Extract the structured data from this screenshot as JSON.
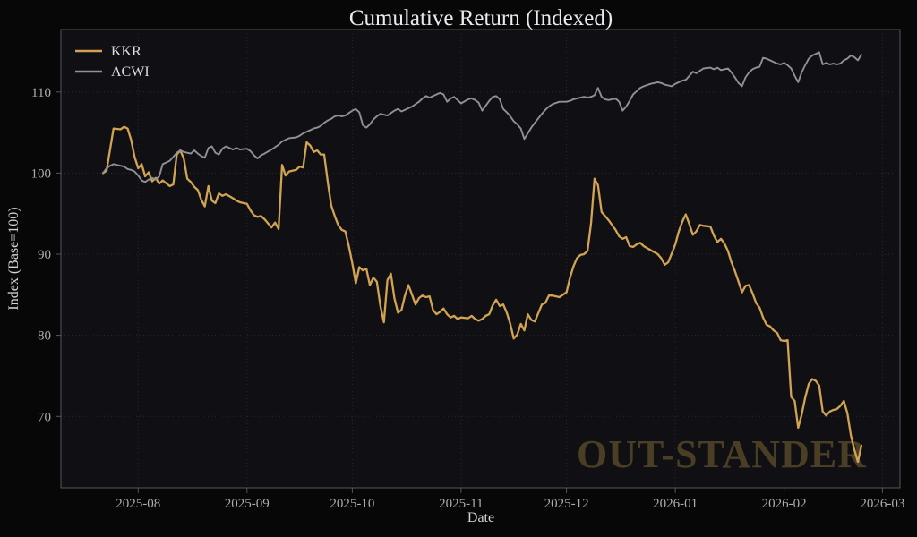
{
  "colors": {
    "background": "#070708",
    "plot_background": "#101014",
    "grid": "#28282d",
    "spine": "#53565b",
    "tick_label": "#abadaf",
    "title": "#e9eaec",
    "axis_label": "#d2d3d5",
    "legend_label": "#dcdddf",
    "watermark": "#4a3e25",
    "kkr": "#d2a352",
    "acwi": "#8e9196"
  },
  "chart_data": {
    "type": "line",
    "title": "Cumulative Return (Indexed)",
    "xlabel": "Date",
    "ylabel": "Index (Base=100)",
    "watermark": "OUT-STANDER",
    "grid": true,
    "legend_position": "upper left",
    "x_range": [
      "2025-07-10",
      "2026-03-06"
    ],
    "ylim": [
      61.2,
      117.7
    ],
    "y_ticks": [
      70,
      80,
      90,
      100,
      110
    ],
    "x_ticks": [
      {
        "date": "2025-08-01",
        "label": "2025-08"
      },
      {
        "date": "2025-09-01",
        "label": "2025-09"
      },
      {
        "date": "2025-10-01",
        "label": "2025-10"
      },
      {
        "date": "2025-11-01",
        "label": "2025-11"
      },
      {
        "date": "2025-12-01",
        "label": "2025-12"
      },
      {
        "date": "2026-01-01",
        "label": "2026-01"
      },
      {
        "date": "2026-02-01",
        "label": "2026-02"
      },
      {
        "date": "2026-03-01",
        "label": "2026-03"
      }
    ],
    "x": [
      "2025-07-22",
      "2025-07-23",
      "2025-07-24",
      "2025-07-25",
      "2025-07-27",
      "2025-07-28",
      "2025-07-29",
      "2025-07-30",
      "2025-07-31",
      "2025-08-01",
      "2025-08-02",
      "2025-08-03",
      "2025-08-04",
      "2025-08-05",
      "2025-08-06",
      "2025-08-07",
      "2025-08-08",
      "2025-08-10",
      "2025-08-11",
      "2025-08-12",
      "2025-08-13",
      "2025-08-14",
      "2025-08-15",
      "2025-08-16",
      "2025-08-17",
      "2025-08-18",
      "2025-08-19",
      "2025-08-20",
      "2025-08-21",
      "2025-08-22",
      "2025-08-23",
      "2025-08-24",
      "2025-08-25",
      "2025-08-26",
      "2025-08-28",
      "2025-08-29",
      "2025-08-30",
      "2025-09-01",
      "2025-09-02",
      "2025-09-03",
      "2025-09-04",
      "2025-09-05",
      "2025-09-06",
      "2025-09-08",
      "2025-09-09",
      "2025-09-10",
      "2025-09-11",
      "2025-09-12",
      "2025-09-13",
      "2025-09-15",
      "2025-09-16",
      "2025-09-17",
      "2025-09-18",
      "2025-09-19",
      "2025-09-20",
      "2025-09-21",
      "2025-09-22",
      "2025-09-23",
      "2025-09-24",
      "2025-09-25",
      "2025-09-26",
      "2025-09-27",
      "2025-09-28",
      "2025-09-29",
      "2025-09-30",
      "2025-10-01",
      "2025-10-02",
      "2025-10-03",
      "2025-10-04",
      "2025-10-05",
      "2025-10-06",
      "2025-10-07",
      "2025-10-08",
      "2025-10-09",
      "2025-10-10",
      "2025-10-11",
      "2025-10-12",
      "2025-10-13",
      "2025-10-14",
      "2025-10-15",
      "2025-10-16",
      "2025-10-17",
      "2025-10-18",
      "2025-10-19",
      "2025-10-20",
      "2025-10-21",
      "2025-10-22",
      "2025-10-23",
      "2025-10-24",
      "2025-10-25",
      "2025-10-26",
      "2025-10-27",
      "2025-10-28",
      "2025-10-29",
      "2025-10-30",
      "2025-10-31",
      "2025-11-01",
      "2025-11-03",
      "2025-11-04",
      "2025-11-05",
      "2025-11-06",
      "2025-11-07",
      "2025-11-08",
      "2025-11-09",
      "2025-11-10",
      "2025-11-11",
      "2025-11-12",
      "2025-11-13",
      "2025-11-14",
      "2025-11-15",
      "2025-11-16",
      "2025-11-17",
      "2025-11-18",
      "2025-11-19",
      "2025-11-20",
      "2025-11-21",
      "2025-11-22",
      "2025-11-24",
      "2025-11-25",
      "2025-11-26",
      "2025-11-27",
      "2025-11-29",
      "2025-12-01",
      "2025-12-02",
      "2025-12-03",
      "2025-12-04",
      "2025-12-05",
      "2025-12-06",
      "2025-12-07",
      "2025-12-08",
      "2025-12-09",
      "2025-12-10",
      "2025-12-11",
      "2025-12-12",
      "2025-12-13",
      "2025-12-15",
      "2025-12-16",
      "2025-12-17",
      "2025-12-18",
      "2025-12-19",
      "2025-12-20",
      "2025-12-21",
      "2025-12-22",
      "2025-12-23",
      "2025-12-25",
      "2025-12-27",
      "2025-12-28",
      "2025-12-29",
      "2025-12-30",
      "2025-12-31",
      "2026-01-01",
      "2026-01-02",
      "2026-01-03",
      "2026-01-04",
      "2026-01-05",
      "2026-01-06",
      "2026-01-07",
      "2026-01-08",
      "2026-01-09",
      "2026-01-11",
      "2026-01-12",
      "2026-01-13",
      "2026-01-14",
      "2026-01-15",
      "2026-01-16",
      "2026-01-17",
      "2026-01-18",
      "2026-01-19",
      "2026-01-20",
      "2026-01-21",
      "2026-01-22",
      "2026-01-23",
      "2026-01-24",
      "2026-01-25",
      "2026-01-26",
      "2026-01-27",
      "2026-01-28",
      "2026-01-29",
      "2026-01-30",
      "2026-01-31",
      "2026-02-01",
      "2026-02-02",
      "2026-02-03",
      "2026-02-04",
      "2026-02-05",
      "2026-02-06",
      "2026-02-07",
      "2026-02-08",
      "2026-02-09",
      "2026-02-10",
      "2026-02-11",
      "2026-02-12",
      "2026-02-13",
      "2026-02-14",
      "2026-02-15",
      "2026-02-16",
      "2026-02-17",
      "2026-02-18",
      "2026-02-19",
      "2026-02-20",
      "2026-02-21",
      "2026-02-22",
      "2026-02-23"
    ],
    "series": [
      {
        "name": "KKR",
        "color": "#d2a352",
        "width": 2.3,
        "values": [
          100.0,
          100.3,
          102.9,
          105.5,
          105.4,
          105.7,
          105.5,
          104.1,
          102.0,
          100.6,
          101.1,
          99.6,
          100.1,
          99.0,
          99.4,
          98.7,
          99.1,
          98.4,
          98.6,
          102.3,
          102.8,
          101.8,
          99.3,
          98.9,
          98.3,
          97.9,
          96.7,
          95.9,
          98.4,
          96.6,
          96.3,
          97.5,
          97.2,
          97.4,
          96.9,
          96.6,
          96.4,
          96.2,
          95.4,
          94.8,
          94.6,
          94.7,
          94.3,
          93.3,
          93.9,
          93.1,
          101.0,
          99.7,
          100.2,
          100.4,
          100.8,
          100.7,
          103.8,
          103.4,
          102.6,
          102.8,
          102.3,
          102.3,
          98.9,
          96.0,
          94.7,
          93.6,
          93.0,
          92.8,
          91.0,
          88.9,
          86.4,
          88.4,
          88.0,
          88.2,
          86.2,
          87.1,
          86.6,
          83.6,
          81.6,
          86.8,
          87.6,
          84.6,
          82.8,
          83.1,
          84.9,
          86.2,
          85.0,
          83.8,
          84.6,
          84.9,
          84.7,
          84.8,
          83.1,
          82.6,
          82.9,
          83.3,
          82.6,
          82.2,
          82.4,
          82.0,
          82.2,
          82.1,
          82.4,
          82.0,
          81.8,
          82.0,
          82.4,
          82.6,
          83.7,
          84.4,
          83.6,
          83.8,
          82.8,
          81.4,
          79.6,
          80.1,
          81.4,
          80.6,
          82.6,
          81.9,
          81.7,
          83.8,
          84.0,
          84.9,
          84.9,
          84.7,
          85.3,
          87.1,
          88.5,
          89.5,
          89.9,
          90.0,
          90.4,
          93.8,
          99.3,
          98.5,
          95.2,
          94.7,
          94.2,
          93.0,
          92.2,
          91.9,
          92.1,
          91.0,
          90.9,
          91.2,
          91.4,
          91.0,
          90.5,
          90.0,
          89.5,
          88.7,
          89.0,
          90.1,
          91.2,
          92.8,
          94.0,
          94.9,
          93.7,
          92.4,
          92.8,
          93.6,
          93.5,
          93.4,
          92.3,
          91.5,
          91.9,
          91.3,
          90.4,
          89.0,
          87.9,
          86.6,
          85.3,
          86.1,
          86.2,
          85.2,
          84.0,
          83.4,
          82.2,
          81.3,
          81.1,
          80.6,
          80.3,
          79.4,
          79.3,
          79.4,
          72.4,
          71.9,
          68.6,
          70.2,
          72.3,
          74.0,
          74.6,
          74.4,
          73.8,
          70.6,
          70.1,
          70.6,
          70.8,
          70.9,
          71.3,
          71.9,
          70.4,
          67.7,
          65.9,
          64.4,
          66.4
        ]
      },
      {
        "name": "ACWI",
        "color": "#8e9196",
        "width": 1.9,
        "values": [
          100.0,
          100.6,
          100.9,
          101.1,
          100.9,
          100.8,
          100.5,
          100.4,
          100.2,
          99.7,
          99.1,
          98.9,
          99.2,
          99.4,
          99.2,
          99.6,
          101.1,
          101.5,
          102.0,
          102.5,
          102.8,
          102.6,
          102.5,
          102.4,
          102.8,
          102.4,
          102.1,
          101.9,
          103.1,
          103.3,
          102.5,
          102.3,
          103.0,
          103.3,
          102.9,
          103.1,
          102.9,
          103.0,
          102.7,
          102.2,
          101.8,
          102.2,
          102.4,
          102.9,
          103.2,
          103.5,
          103.9,
          104.1,
          104.3,
          104.4,
          104.6,
          104.9,
          105.1,
          105.3,
          105.5,
          105.6,
          105.8,
          106.2,
          106.5,
          106.7,
          107.0,
          107.1,
          107.0,
          107.1,
          107.4,
          107.7,
          107.9,
          107.5,
          105.9,
          105.6,
          106.0,
          106.6,
          107.0,
          107.3,
          107.2,
          107.1,
          107.4,
          107.7,
          107.9,
          107.6,
          107.8,
          108.0,
          108.2,
          108.5,
          108.8,
          109.2,
          109.5,
          109.3,
          109.5,
          109.7,
          109.9,
          109.7,
          108.8,
          109.2,
          109.4,
          109.0,
          108.6,
          109.1,
          109.2,
          109.0,
          108.7,
          107.7,
          108.3,
          108.9,
          109.4,
          109.5,
          109.1,
          107.9,
          107.5,
          107.0,
          106.4,
          106.0,
          105.5,
          104.2,
          104.9,
          105.6,
          106.2,
          107.3,
          107.8,
          108.2,
          108.5,
          108.8,
          108.8,
          108.9,
          109.1,
          109.2,
          109.3,
          109.4,
          109.3,
          109.4,
          109.6,
          110.5,
          109.4,
          109.1,
          109.0,
          109.2,
          108.8,
          107.7,
          108.2,
          108.9,
          109.7,
          110.1,
          110.5,
          110.7,
          111.0,
          111.2,
          111.1,
          110.9,
          110.8,
          110.7,
          111.0,
          111.2,
          111.4,
          111.5,
          112.0,
          112.5,
          112.3,
          112.6,
          112.9,
          113.0,
          112.8,
          113.0,
          112.7,
          112.8,
          112.9,
          112.4,
          111.8,
          111.1,
          110.7,
          111.8,
          112.4,
          112.8,
          113.0,
          113.1,
          114.2,
          114.1,
          113.9,
          113.7,
          113.5,
          113.4,
          113.6,
          113.3,
          112.9,
          112.0,
          111.2,
          112.4,
          113.3,
          114.1,
          114.5,
          114.7,
          114.9,
          113.4,
          113.6,
          113.4,
          113.5,
          113.4,
          113.5,
          113.9,
          114.1,
          114.5,
          114.3,
          113.9,
          114.6
        ]
      }
    ]
  }
}
